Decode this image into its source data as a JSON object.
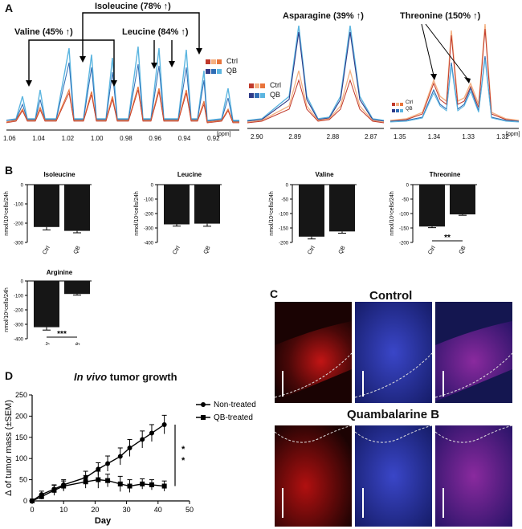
{
  "panels": {
    "a": "A",
    "b": "B",
    "c": "C",
    "d": "D"
  },
  "nmr": {
    "labels": {
      "valine": "Valine (45% ↑)",
      "isoleucine": "Isoleucine (78% ↑)",
      "leucine": "Leucine (84% ↑)",
      "asparagine": "Asparagine (39% ↑)",
      "threonine": "Threonine (150% ↑)"
    },
    "legend": {
      "ctrl": "Ctrl",
      "qb": "QB"
    },
    "ppm_unit": "[ppm]",
    "spec1_ticks": [
      "1.06",
      "1.04",
      "1.02",
      "1.00",
      "0.98",
      "0.96",
      "0.94",
      "0.92"
    ],
    "spec2_ticks": [
      "2.90",
      "2.89",
      "2.88",
      "2.87"
    ],
    "spec3_ticks": [
      "1.35",
      "1.34",
      "1.33",
      "1.32"
    ],
    "colors": {
      "ctrl_dark": "#c0392b",
      "ctrl_mid": "#e8743b",
      "ctrl_light": "#f4b183",
      "qb_dark": "#2e3a87",
      "qb_mid": "#2f6db5",
      "qb_light": "#5bb5e0"
    }
  },
  "bar_ylabel": "nmol/10⁶cells/24h",
  "chart_data": [
    {
      "type": "bar",
      "title": "Isoleucine",
      "categories": [
        "Ctrl",
        "QB"
      ],
      "values": [
        -220,
        -240
      ],
      "errors": [
        15,
        10
      ],
      "ylim": [
        -300,
        0
      ],
      "yticks": [
        "0",
        "-100",
        "-200",
        "-300"
      ],
      "significance": ""
    },
    {
      "type": "bar",
      "title": "Leucine",
      "categories": [
        "Ctrl",
        "QB"
      ],
      "values": [
        -275,
        -270
      ],
      "errors": [
        12,
        18
      ],
      "ylim": [
        -400,
        0
      ],
      "yticks": [
        "0",
        "-100",
        "-200",
        "-300",
        "-400"
      ],
      "significance": ""
    },
    {
      "type": "bar",
      "title": "Valine",
      "categories": [
        "Ctrl",
        "QB"
      ],
      "values": [
        -180,
        -162
      ],
      "errors": [
        8,
        6
      ],
      "ylim": [
        -200,
        0
      ],
      "yticks": [
        "0",
        "-50",
        "-100",
        "-150",
        "-200"
      ],
      "significance": ""
    },
    {
      "type": "bar",
      "title": "Threonine",
      "categories": [
        "Ctrl",
        "QB"
      ],
      "values": [
        -145,
        -103
      ],
      "errors": [
        4,
        3
      ],
      "ylim": [
        -200,
        0
      ],
      "yticks": [
        "0",
        "-50",
        "-100",
        "-150",
        "-200"
      ],
      "significance": "**"
    },
    {
      "type": "bar",
      "title": "Arginine",
      "categories": [
        "Ctrl",
        "QB"
      ],
      "values": [
        -320,
        -90
      ],
      "errors": [
        20,
        8
      ],
      "ylim": [
        -400,
        0
      ],
      "yticks": [
        "0",
        "-100",
        "-200",
        "-300",
        "-400"
      ],
      "significance": "***"
    },
    {
      "type": "line",
      "title_italic": "In vivo",
      "title_rest": " tumor growth",
      "xlabel": "Day",
      "ylabel": "Δ of tumor mass (±SEM)",
      "xlim": [
        0,
        50
      ],
      "ylim": [
        0,
        250
      ],
      "xticks": [
        "0",
        "10",
        "20",
        "30",
        "40",
        "50"
      ],
      "yticks": [
        "0",
        "50",
        "100",
        "150",
        "200",
        "250"
      ],
      "series": [
        {
          "name": "Non-treated",
          "marker": "circle",
          "x": [
            0,
            3,
            7,
            10,
            17,
            21,
            24,
            28,
            31,
            35,
            38,
            42
          ],
          "y": [
            0,
            15,
            28,
            38,
            55,
            75,
            88,
            105,
            125,
            145,
            160,
            180
          ],
          "err": [
            3,
            8,
            10,
            12,
            15,
            15,
            18,
            20,
            20,
            20,
            20,
            22
          ]
        },
        {
          "name": "QB-treated",
          "marker": "square",
          "x": [
            0,
            3,
            7,
            10,
            17,
            21,
            24,
            28,
            31,
            35,
            38,
            42
          ],
          "y": [
            0,
            10,
            25,
            35,
            45,
            50,
            48,
            40,
            35,
            40,
            38,
            35
          ],
          "err": [
            3,
            6,
            12,
            12,
            15,
            20,
            15,
            18,
            15,
            12,
            12,
            12
          ]
        }
      ],
      "significance": "**"
    }
  ],
  "micro": {
    "control": "Control",
    "qb": "Quambalarine B"
  }
}
